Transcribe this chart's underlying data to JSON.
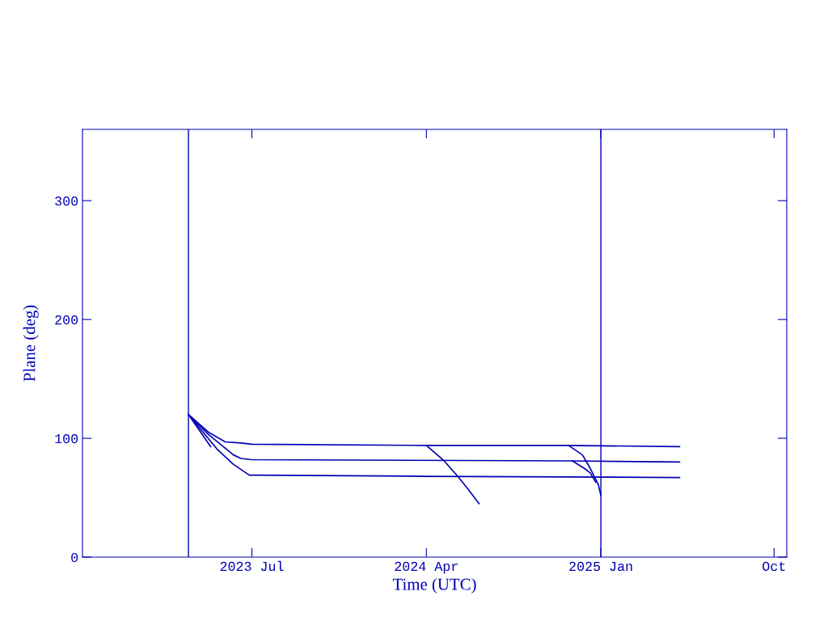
{
  "chart_data": {
    "type": "line",
    "xlabel": "Time (UTC)",
    "ylabel": "Plane (deg)",
    "xlim": [
      "2022-10-07",
      "2025-10-21"
    ],
    "ylim": [
      0,
      360
    ],
    "xticks": [
      {
        "value": "2023-07-01",
        "label": "2023 Jul"
      },
      {
        "value": "2024-04-01",
        "label": "2024 Apr"
      },
      {
        "value": "2025-01-01",
        "label": "2025 Jan"
      },
      {
        "value": "2025-10-01",
        "label": "Oct"
      }
    ],
    "yticks": [
      0,
      100,
      200,
      300
    ],
    "grid": false,
    "legend": false,
    "marker": "none",
    "line_style": "solid",
    "series": [
      {
        "color": "#0000b4",
        "x": [
          "2023-03-23",
          "2023-04-24",
          "2023-05-20",
          "2023-06-14",
          "2023-07-01",
          "2024-04-01",
          "2024-11-07",
          "2025-05-05"
        ],
        "values": [
          120,
          105,
          97,
          96,
          95,
          94,
          94,
          93
        ]
      },
      {
        "color": "#0000b4",
        "x": [
          "2023-03-23",
          "2023-04-24",
          "2023-06-02",
          "2023-06-14",
          "2023-07-01",
          "2024-11-17",
          "2025-05-05"
        ],
        "values": [
          120,
          103,
          86,
          83,
          82,
          81,
          80
        ]
      },
      {
        "color": "#0000b4",
        "x": [
          "2023-03-23",
          "2023-05-07",
          "2023-06-02",
          "2023-06-27",
          "2023-07-10",
          "2024-04-01",
          "2025-05-05"
        ],
        "values": [
          120,
          91,
          78,
          69,
          69,
          68,
          67
        ]
      },
      {
        "color": "#0000b4",
        "x": [
          "2023-03-23",
          "2023-04-27"
        ],
        "values": [
          120,
          93
        ]
      },
      {
        "color": "#0000b4",
        "x": [
          "2024-04-01",
          "2024-04-29",
          "2024-05-22",
          "2024-06-06",
          "2024-06-23"
        ],
        "values": [
          94,
          81,
          67,
          57,
          45
        ]
      },
      {
        "color": "#0000b4",
        "x": [
          "2024-11-11",
          "2024-12-03",
          "2024-12-15",
          "2024-12-28",
          "2025-01-01"
        ],
        "values": [
          94,
          86,
          75,
          61,
          52
        ]
      },
      {
        "color": "#0000b4",
        "x": [
          "2024-11-17",
          "2024-12-05",
          "2024-12-15",
          "2024-12-24"
        ],
        "values": [
          81,
          75,
          71,
          63
        ]
      }
    ],
    "ref_lines": [
      {
        "axis": "x",
        "value": "2023-03-23",
        "color": "#0000b4"
      },
      {
        "axis": "x",
        "value": "2025-01-01",
        "color": "#0000b4"
      }
    ]
  }
}
